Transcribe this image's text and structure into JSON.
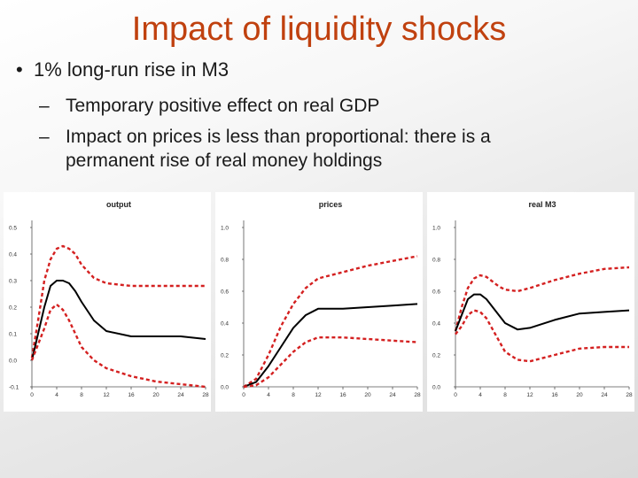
{
  "slide": {
    "title": "Impact of liquidity shocks",
    "bullet": "1% long-run rise in M3",
    "sub1": "Temporary positive effect on real GDP",
    "sub2_line1": "Impact on prices is less than proportional: there is a",
    "sub2_line2": "permanent rise of real money holdings",
    "bullet_symbol": "•",
    "dash_symbol": "–"
  },
  "colors": {
    "title": "#c0410f",
    "median_line": "#000000",
    "band_line": "#d42020"
  },
  "chart_data": [
    {
      "type": "line",
      "title": "output",
      "xlabel": "",
      "ylabel": "",
      "x_ticks": [
        0,
        4,
        8,
        12,
        16,
        20,
        24,
        28
      ],
      "y_ticks": [
        -0.1,
        0.0,
        0.1,
        0.2,
        0.3,
        0.4,
        0.5
      ],
      "y_tick_labels": [
        "-0.1",
        "0.0",
        "0.1",
        "0.2",
        "0.3",
        "0.4",
        "0.5"
      ],
      "xlim": [
        0,
        28
      ],
      "ylim": [
        -0.1,
        0.5
      ],
      "series": [
        {
          "name": "upper",
          "style": "dashed",
          "x": [
            0,
            1,
            2,
            3,
            4,
            5,
            6,
            7,
            8,
            10,
            12,
            16,
            20,
            24,
            28
          ],
          "y": [
            0.01,
            0.15,
            0.3,
            0.38,
            0.42,
            0.43,
            0.42,
            0.4,
            0.36,
            0.31,
            0.29,
            0.28,
            0.28,
            0.28,
            0.28
          ]
        },
        {
          "name": "median",
          "style": "solid",
          "x": [
            0,
            1,
            2,
            3,
            4,
            5,
            6,
            7,
            8,
            10,
            12,
            16,
            20,
            24,
            28
          ],
          "y": [
            0.0,
            0.1,
            0.2,
            0.28,
            0.3,
            0.3,
            0.29,
            0.26,
            0.22,
            0.15,
            0.11,
            0.09,
            0.09,
            0.09,
            0.08
          ]
        },
        {
          "name": "lower",
          "style": "dashed",
          "x": [
            0,
            1,
            2,
            3,
            4,
            5,
            6,
            7,
            8,
            10,
            12,
            16,
            20,
            24,
            28
          ],
          "y": [
            0.0,
            0.06,
            0.12,
            0.19,
            0.21,
            0.19,
            0.15,
            0.1,
            0.05,
            0.0,
            -0.03,
            -0.06,
            -0.08,
            -0.09,
            -0.1
          ]
        }
      ]
    },
    {
      "type": "line",
      "title": "prices",
      "xlabel": "",
      "ylabel": "",
      "x_ticks": [
        0,
        4,
        8,
        12,
        16,
        20,
        24,
        28
      ],
      "y_ticks": [
        0.0,
        0.2,
        0.4,
        0.6,
        0.8,
        1.0
      ],
      "y_tick_labels": [
        "0.0",
        "0.2",
        "0.4",
        "0.6",
        "0.8",
        "1.0"
      ],
      "xlim": [
        0,
        28
      ],
      "ylim": [
        0.0,
        1.0
      ],
      "series": [
        {
          "name": "upper",
          "style": "dashed",
          "x": [
            0,
            2,
            4,
            6,
            8,
            10,
            12,
            16,
            20,
            24,
            28
          ],
          "y": [
            0.0,
            0.05,
            0.2,
            0.38,
            0.52,
            0.62,
            0.68,
            0.72,
            0.76,
            0.79,
            0.82
          ]
        },
        {
          "name": "median",
          "style": "solid",
          "x": [
            0,
            2,
            4,
            6,
            8,
            10,
            12,
            16,
            20,
            24,
            28
          ],
          "y": [
            0.0,
            0.03,
            0.13,
            0.25,
            0.37,
            0.45,
            0.49,
            0.49,
            0.5,
            0.51,
            0.52
          ]
        },
        {
          "name": "lower",
          "style": "dashed",
          "x": [
            0,
            2,
            4,
            6,
            8,
            10,
            12,
            16,
            20,
            24,
            28
          ],
          "y": [
            0.0,
            0.01,
            0.06,
            0.14,
            0.22,
            0.28,
            0.31,
            0.31,
            0.3,
            0.29,
            0.28
          ]
        }
      ]
    },
    {
      "type": "line",
      "title": "real M3",
      "xlabel": "",
      "ylabel": "",
      "x_ticks": [
        0,
        4,
        8,
        12,
        16,
        20,
        24,
        28
      ],
      "y_ticks": [
        0.0,
        0.2,
        0.4,
        0.6,
        0.8,
        1.0
      ],
      "y_tick_labels": [
        "0.0",
        "0.2",
        "0.4",
        "0.6",
        "0.8",
        "1.0"
      ],
      "xlim": [
        0,
        28
      ],
      "ylim": [
        0.0,
        1.0
      ],
      "series": [
        {
          "name": "upper",
          "style": "dashed",
          "x": [
            0,
            1,
            2,
            3,
            4,
            5,
            6,
            7,
            8,
            10,
            12,
            16,
            20,
            24,
            28
          ],
          "y": [
            0.35,
            0.5,
            0.62,
            0.68,
            0.7,
            0.69,
            0.66,
            0.63,
            0.61,
            0.6,
            0.62,
            0.67,
            0.71,
            0.74,
            0.75
          ]
        },
        {
          "name": "median",
          "style": "solid",
          "x": [
            0,
            1,
            2,
            3,
            4,
            5,
            6,
            7,
            8,
            10,
            12,
            16,
            20,
            24,
            28
          ],
          "y": [
            0.35,
            0.45,
            0.55,
            0.58,
            0.58,
            0.55,
            0.5,
            0.45,
            0.4,
            0.36,
            0.37,
            0.42,
            0.46,
            0.47,
            0.48
          ]
        },
        {
          "name": "lower",
          "style": "dashed",
          "x": [
            0,
            1,
            2,
            3,
            4,
            5,
            6,
            7,
            8,
            10,
            12,
            16,
            20,
            24,
            28
          ],
          "y": [
            0.33,
            0.38,
            0.45,
            0.48,
            0.47,
            0.43,
            0.36,
            0.29,
            0.22,
            0.17,
            0.16,
            0.2,
            0.24,
            0.25,
            0.25
          ]
        }
      ]
    }
  ]
}
